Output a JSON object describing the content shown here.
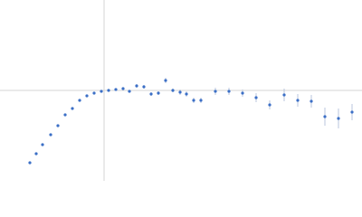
{
  "chart_data": {
    "type": "scatter",
    "x": [
      -82,
      -75,
      -68,
      -59,
      -51,
      -43,
      -35,
      -27,
      -19,
      -11,
      -3,
      5,
      13,
      21,
      28,
      36,
      44,
      52,
      60,
      68,
      76,
      84,
      91,
      99,
      107,
      123,
      138,
      153,
      168,
      183,
      199,
      214,
      229,
      244,
      259,
      274
    ],
    "values": [
      -80,
      -70,
      -60,
      -49,
      -39,
      -27,
      -20,
      -11,
      -6,
      -3,
      -1,
      0,
      1,
      2,
      -1,
      5,
      4,
      -4,
      -3,
      11,
      0,
      -2,
      -4,
      -11,
      -11,
      -1,
      -1,
      -3,
      -8,
      -16,
      -5,
      -11,
      -12,
      -29,
      -31,
      -24
    ],
    "errors": [
      1,
      1,
      1,
      1,
      1,
      1,
      1,
      1,
      1,
      1,
      1,
      1,
      1,
      1,
      1,
      2,
      2,
      2,
      2,
      3,
      2,
      3,
      3,
      3,
      3,
      4,
      4,
      4,
      5,
      5,
      7,
      7,
      7,
      10,
      11,
      9
    ],
    "color": "#3b6fc6",
    "error_color": "#b9c6dc",
    "xlim": [
      -115,
      285
    ],
    "ylim": [
      -100,
      100
    ]
  }
}
